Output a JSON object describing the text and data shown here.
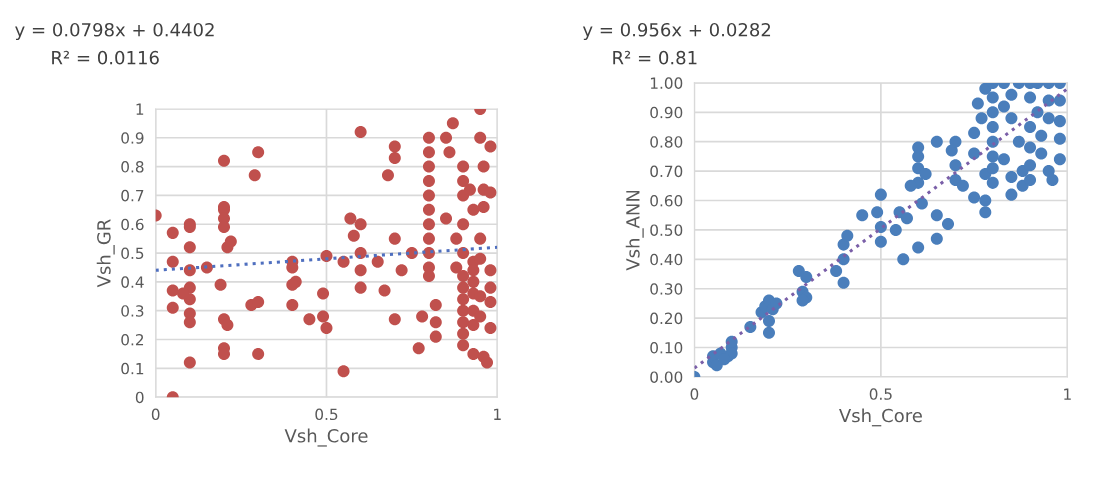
{
  "chart_data": [
    {
      "type": "scatter",
      "xlabel": "Vsh_Core",
      "ylabel": "Vsh_GR",
      "annotations": [
        "y = 0.0798x + 0.4402",
        "R² = 0.0116"
      ],
      "xlim": [
        0,
        1
      ],
      "xticks": [
        0,
        0.5,
        1
      ],
      "ylim": [
        0,
        1
      ],
      "yticks": [
        0,
        0.1,
        0.2,
        0.3,
        0.4,
        0.5,
        0.6,
        0.7,
        0.8,
        0.9,
        1
      ],
      "grid": true,
      "series": [
        {
          "marker": "circle",
          "color": "#c0504d",
          "x": [
            0,
            0.05,
            0.05,
            0.05,
            0.05,
            0.05,
            0.1,
            0.1,
            0.1,
            0.1,
            0.1,
            0.1,
            0.1,
            0.1,
            0.1,
            0.08,
            0.15,
            0.19,
            0.2,
            0.2,
            0.2,
            0.2,
            0.21,
            0.22,
            0.2,
            0.21,
            0.2,
            0.2,
            0.2,
            0.29,
            0.3,
            0.28,
            0.3,
            0.3,
            0.4,
            0.4,
            0.41,
            0.4,
            0.4,
            0.45,
            0.49,
            0.49,
            0.5,
            0.5,
            0.55,
            0.55,
            0.6,
            0.57,
            0.58,
            0.6,
            0.6,
            0.6,
            0.6,
            0.65,
            0.67,
            0.68,
            0.7,
            0.7,
            0.7,
            0.72,
            0.7,
            0.75,
            0.77,
            0.78,
            0.8,
            0.8,
            0.8,
            0.8,
            0.8,
            0.8,
            0.8,
            0.8,
            0.8,
            0.8,
            0.8,
            0.82,
            0.82,
            0.82,
            0.85,
            0.86,
            0.87,
            0.85,
            0.88,
            0.88,
            0.9,
            0.9,
            0.9,
            0.9,
            0.9,
            0.9,
            0.9,
            0.9,
            0.9,
            0.9,
            0.9,
            0.9,
            0.92,
            0.93,
            0.93,
            0.93,
            0.93,
            0.93,
            0.93,
            0.93,
            0.93,
            0.95,
            0.95,
            0.96,
            0.96,
            0.96,
            0.95,
            0.95,
            0.95,
            0.95,
            0.96,
            0.97,
            0.98,
            0.98,
            0.98,
            0.98,
            0.98,
            0.98
          ],
          "values": [
            0.63,
            0.57,
            0.47,
            0.37,
            0.31,
            0,
            0.6,
            0.59,
            0.52,
            0.44,
            0.38,
            0.34,
            0.29,
            0.26,
            0.12,
            0.36,
            0.45,
            0.39,
            0.65,
            0.66,
            0.62,
            0.59,
            0.52,
            0.54,
            0.27,
            0.25,
            0.17,
            0.15,
            0.82,
            0.77,
            0.85,
            0.32,
            0.33,
            0.15,
            0.47,
            0.45,
            0.4,
            0.39,
            0.32,
            0.27,
            0.36,
            0.28,
            0.24,
            0.49,
            0.47,
            0.09,
            0.92,
            0.62,
            0.56,
            0.6,
            0.5,
            0.44,
            0.38,
            0.47,
            0.37,
            0.77,
            0.87,
            0.83,
            0.55,
            0.44,
            0.27,
            0.5,
            0.17,
            0.28,
            0.9,
            0.85,
            0.8,
            0.75,
            0.7,
            0.65,
            0.6,
            0.55,
            0.5,
            0.45,
            0.42,
            0.32,
            0.26,
            0.21,
            0.9,
            0.85,
            0.95,
            0.62,
            0.55,
            0.45,
            0.8,
            0.75,
            0.7,
            0.6,
            0.5,
            0.42,
            0.38,
            0.34,
            0.3,
            0.26,
            0.22,
            0.18,
            0.72,
            0.65,
            0.47,
            0.44,
            0.4,
            0.36,
            0.3,
            0.25,
            0.15,
            1.0,
            0.9,
            0.8,
            0.72,
            0.66,
            0.55,
            0.48,
            0.35,
            0.28,
            0.14,
            0.12,
            0.87,
            0.71,
            0.44,
            0.38,
            0.33,
            0.24
          ]
        },
        {
          "type": "line",
          "line_style": "dotted",
          "color": "#4f6fbf",
          "x": [
            0,
            1
          ],
          "values": [
            0.44,
            0.52
          ]
        }
      ]
    },
    {
      "type": "scatter",
      "xlabel": "Vsh_Core",
      "ylabel": "Vsh_ANN",
      "annotations": [
        "y = 0.956x + 0.0282",
        "R² = 0.81"
      ],
      "xlim": [
        0,
        1
      ],
      "xticks": [
        0,
        0.5,
        1
      ],
      "ylim": [
        0,
        1
      ],
      "yticks": [
        {
          "value": 0,
          "label": "0.00"
        },
        {
          "value": 0.1,
          "label": "0.10"
        },
        {
          "value": 0.2,
          "label": "0.20"
        },
        {
          "value": 0.3,
          "label": "0.30"
        },
        {
          "value": 0.4,
          "label": "0.40"
        },
        {
          "value": 0.5,
          "label": "0.50"
        },
        {
          "value": 0.6,
          "label": "0.60"
        },
        {
          "value": 0.7,
          "label": "0.70"
        },
        {
          "value": 0.8,
          "label": "0.80"
        },
        {
          "value": 0.9,
          "label": "0.90"
        },
        {
          "value": 1,
          "label": "1.00"
        }
      ],
      "grid": true,
      "series": [
        {
          "marker": "circle",
          "color": "#4a7ebb",
          "x": [
            0,
            0.05,
            0.05,
            0.06,
            0.07,
            0.09,
            0.1,
            0.1,
            0.1,
            0.08,
            0.15,
            0.18,
            0.19,
            0.2,
            0.2,
            0.2,
            0.21,
            0.22,
            0.28,
            0.3,
            0.29,
            0.3,
            0.29,
            0.38,
            0.4,
            0.4,
            0.4,
            0.41,
            0.45,
            0.49,
            0.5,
            0.5,
            0.5,
            0.54,
            0.55,
            0.57,
            0.56,
            0.6,
            0.61,
            0.6,
            0.58,
            0.6,
            0.6,
            0.6,
            0.62,
            0.65,
            0.65,
            0.65,
            0.68,
            0.69,
            0.7,
            0.7,
            0.7,
            0.72,
            0.75,
            0.75,
            0.75,
            0.78,
            0.78,
            0.78,
            0.77,
            0.76,
            0.78,
            0.8,
            0.8,
            0.8,
            0.8,
            0.8,
            0.8,
            0.8,
            0.8,
            0.83,
            0.83,
            0.83,
            0.85,
            0.85,
            0.85,
            0.85,
            0.87,
            0.87,
            0.88,
            0.88,
            0.9,
            0.9,
            0.9,
            0.9,
            0.9,
            0.9,
            0.92,
            0.92,
            0.93,
            0.93,
            0.95,
            0.95,
            0.95,
            0.95,
            0.96,
            0.98,
            0.98,
            0.98,
            0.98,
            0.98
          ],
          "values": [
            0,
            0.05,
            0.07,
            0.04,
            0.08,
            0.07,
            0.1,
            0.12,
            0.08,
            0.06,
            0.17,
            0.22,
            0.24,
            0.26,
            0.19,
            0.15,
            0.23,
            0.25,
            0.36,
            0.34,
            0.29,
            0.27,
            0.26,
            0.36,
            0.32,
            0.4,
            0.45,
            0.48,
            0.55,
            0.56,
            0.51,
            0.46,
            0.62,
            0.5,
            0.56,
            0.54,
            0.4,
            0.44,
            0.59,
            0.66,
            0.65,
            0.71,
            0.75,
            0.78,
            0.69,
            0.47,
            0.55,
            0.8,
            0.52,
            0.77,
            0.8,
            0.72,
            0.67,
            0.65,
            0.83,
            0.76,
            0.61,
            0.56,
            0.6,
            0.69,
            0.88,
            0.93,
            0.98,
            1.0,
            0.95,
            0.9,
            0.85,
            0.8,
            0.75,
            0.71,
            0.66,
            1.0,
            0.92,
            0.74,
            0.68,
            0.62,
            0.88,
            0.96,
            1.0,
            0.8,
            0.7,
            0.65,
            1.0,
            0.95,
            0.85,
            0.78,
            0.72,
            0.67,
            1.0,
            0.9,
            0.82,
            0.76,
            1.0,
            0.94,
            0.88,
            0.7,
            0.67,
            1.0,
            0.94,
            0.87,
            0.81,
            0.74
          ]
        },
        {
          "type": "line",
          "line_style": "dotted",
          "color": "#7a5fa8",
          "x": [
            0,
            1
          ],
          "values": [
            0.03,
            0.98
          ]
        }
      ]
    }
  ]
}
